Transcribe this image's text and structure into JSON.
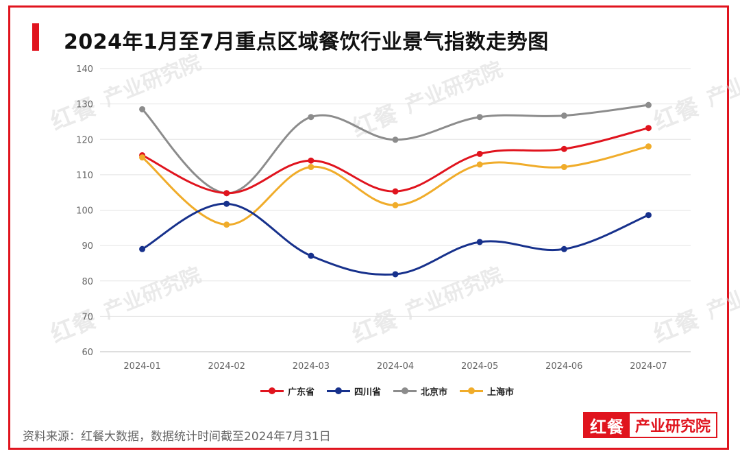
{
  "title": "2024年1月至7月重点区域餐饮行业景气指数走势图",
  "footer": {
    "note": "资料来源：红餐大数据，数据统计时间截至2024年7月31日"
  },
  "brand": {
    "logo": "红餐",
    "text": "产业研究院"
  },
  "watermark": {
    "logo": "红餐",
    "text": "产业研究院"
  },
  "colors": {
    "accent": "#e0141e"
  },
  "chart_data": {
    "type": "line",
    "title": "2024年1月至7月重点区域餐饮行业景气指数走势图",
    "categories": [
      "2024-01",
      "2024-02",
      "2024-03",
      "2024-04",
      "2024-05",
      "2024-06",
      "2024-07"
    ],
    "ylim": [
      60,
      140
    ],
    "yticks": [
      60,
      70,
      80,
      90,
      100,
      110,
      120,
      130,
      140
    ],
    "grid": true,
    "legend_position": "bottom",
    "series": [
      {
        "name": "广东省",
        "color": "#e0141e",
        "values": [
          115.5,
          104.8,
          114.0,
          105.3,
          115.9,
          117.3,
          123.2
        ]
      },
      {
        "name": "四川省",
        "color": "#17318c",
        "values": [
          89.0,
          101.8,
          87.1,
          81.9,
          91.0,
          89.0,
          98.6
        ]
      },
      {
        "name": "北京市",
        "color": "#8c8c8c",
        "values": [
          128.5,
          104.8,
          126.3,
          119.9,
          126.3,
          126.7,
          129.7
        ]
      },
      {
        "name": "上海市",
        "color": "#f0ac2a",
        "values": [
          114.9,
          95.9,
          112.2,
          101.4,
          112.9,
          112.2,
          118.0
        ]
      }
    ]
  }
}
